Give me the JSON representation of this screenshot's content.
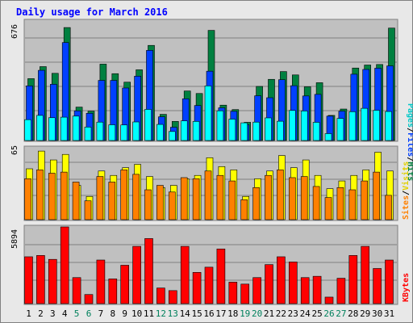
{
  "chart_data": [
    {
      "type": "bar",
      "title": "Daily usage for March 2016",
      "categories": [
        "1",
        "2",
        "3",
        "4",
        "5",
        "6",
        "7",
        "8",
        "9",
        "10",
        "11",
        "12",
        "13",
        "14",
        "15",
        "16",
        "17",
        "18",
        "19",
        "20",
        "21",
        "22",
        "23",
        "24",
        "25",
        "26",
        "27",
        "28",
        "29",
        "30",
        "31"
      ],
      "weekend_days": [
        "5",
        "6",
        "12",
        "13",
        "19",
        "20",
        "26",
        "27"
      ],
      "ymax_label": "676",
      "ymax": 676,
      "series": [
        {
          "name": "Hits",
          "color": "#008040",
          "values": [
            350,
            418,
            380,
            639,
            189,
            166,
            432,
            378,
            330,
            400,
            538,
            148,
            108,
            280,
            266,
            623,
            200,
            175,
            103,
            306,
            346,
            390,
            371,
            304,
            327,
            142,
            178,
            410,
            427,
            430,
            636
          ]
        },
        {
          "name": "Files",
          "color": "#0040ff",
          "values": [
            309,
            397,
            318,
            554,
            168,
            154,
            340,
            340,
            297,
            364,
            510,
            134,
            75,
            236,
            198,
            392,
            185,
            165,
            90,
            253,
            242,
            344,
            310,
            252,
            261,
            138,
            166,
            375,
            402,
            409,
            422
          ]
        },
        {
          "name": "Pages",
          "color": "#00ffff",
          "values": [
            118,
            142,
            129,
            132,
            138,
            76,
            104,
            89,
            88,
            105,
            176,
            91,
            51,
            111,
            108,
            309,
            168,
            121,
            100,
            104,
            128,
            109,
            170,
            167,
            103,
            39,
            125,
            163,
            182,
            171,
            164
          ]
        }
      ]
    },
    {
      "type": "bar",
      "ymax_label": "65",
      "ymax": 65,
      "series": [
        {
          "name": "Visits",
          "color": "#ffff00",
          "values": [
            46,
            62,
            54,
            59,
            31,
            21,
            44,
            40,
            47,
            50,
            39,
            29,
            31,
            37,
            40,
            56,
            48,
            45,
            21,
            37,
            44,
            58,
            47,
            54,
            40,
            28,
            35,
            40,
            45,
            61,
            44
          ]
        },
        {
          "name": "Sites",
          "color": "#ff8000",
          "values": [
            37,
            45,
            42,
            43,
            34,
            17,
            39,
            34,
            45,
            41,
            27,
            31,
            25,
            38,
            37,
            44,
            40,
            35,
            18,
            29,
            40,
            45,
            38,
            39,
            30,
            20,
            29,
            27,
            35,
            43,
            22
          ]
        }
      ]
    },
    {
      "type": "bar",
      "ymax_label": "5894",
      "ymax": 5894,
      "series": [
        {
          "name": "KBytes",
          "color": "#ff0000",
          "values": [
            3600,
            3700,
            3400,
            5894,
            2000,
            700,
            3350,
            1900,
            2950,
            4400,
            5000,
            1200,
            1000,
            4400,
            2400,
            2800,
            4200,
            1650,
            1500,
            2000,
            3000,
            3600,
            3200,
            2000,
            2100,
            500,
            1950,
            3700,
            4400,
            2700,
            3350
          ]
        }
      ]
    }
  ],
  "legend": {
    "top": {
      "pages": "Pages",
      "files": "Files",
      "hits": "Hits",
      "sep": "/"
    },
    "middle": {
      "sites": "Sites",
      "visits": "Visits",
      "sep": "/"
    },
    "bottom": {
      "kbytes": "KBytes"
    }
  },
  "colors": {
    "panel": "#c0c0c0",
    "frame": "#808080",
    "bg": "#e8e8e8",
    "title": "#0000ff",
    "weekday_label": "#000000",
    "weekend_label": "#00805c",
    "grid": "#808080"
  }
}
